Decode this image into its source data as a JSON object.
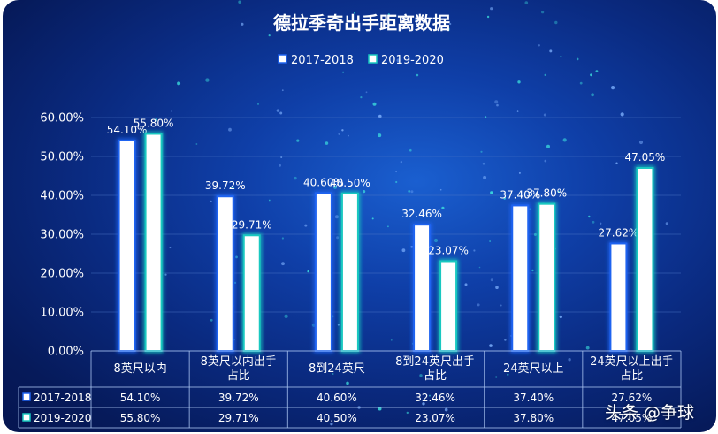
{
  "chart_data": {
    "type": "bar",
    "title": "德拉季奇出手距离数据",
    "categories": [
      "8英尺以内",
      "8英尺以内出手占比",
      "8到24英尺",
      "8到24英尺出手占比",
      "24英尺以上",
      "24英尺以上出手占比"
    ],
    "category_lines": [
      [
        "8英尺以内"
      ],
      [
        "8英尺以内出手",
        "占比"
      ],
      [
        "8到24英尺"
      ],
      [
        "8到24英尺出手",
        "占比"
      ],
      [
        "24英尺以上"
      ],
      [
        "24英尺以上出手",
        "占比"
      ]
    ],
    "series": [
      {
        "name": "2017-2018",
        "values": [
          54.1,
          39.72,
          40.6,
          32.46,
          37.4,
          27.62
        ],
        "labels": [
          "54.10%",
          "39.72%",
          "40.60%",
          "32.46%",
          "37.40%",
          "27.62%"
        ],
        "color": "#ffffff",
        "border": "#1e63f0"
      },
      {
        "name": "2019-2020",
        "values": [
          55.8,
          29.71,
          40.5,
          23.07,
          37.8,
          47.05
        ],
        "labels": [
          "55.80%",
          "29.71%",
          "40.50%",
          "23.07%",
          "37.80%",
          "47.05%"
        ],
        "color": "#ffffff",
        "border": "#19c8c0"
      }
    ],
    "ylim": [
      0,
      60
    ],
    "yticks": [
      "0.00%",
      "10.00%",
      "20.00%",
      "30.00%",
      "40.00%",
      "50.00%",
      "60.00%"
    ],
    "legend_position": "top",
    "grid": true,
    "data_table": true
  },
  "watermark": "头条 @争球"
}
